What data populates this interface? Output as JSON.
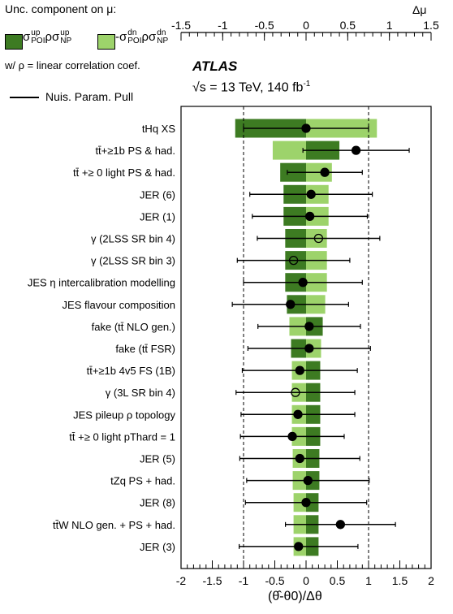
{
  "legend": {
    "title": "Unc. component on μ:",
    "up_color": "#3d7b22",
    "down_color": "#9dd36b",
    "corr_note": "w/ ρ = linear correlation coef.",
    "pull_label": "Nuis. Param. Pull"
  },
  "labels": {
    "atlas": "ATLAS",
    "energy_prefix": "√s = 13 TeV, 140 fb",
    "energy_exp": "-1",
    "x_title": "(θ̂-θ0)/Δθ",
    "top_title": "Δμ"
  },
  "chart_data": {
    "type": "ranking",
    "x_bottom": {
      "range": [
        -2,
        2
      ],
      "ticks": [
        -2,
        -1.5,
        -1,
        -0.5,
        0,
        0.5,
        1,
        1.5,
        2
      ]
    },
    "x_top": {
      "range": [
        -1.5,
        1.5
      ],
      "ticks": [
        -1.5,
        -1,
        -0.5,
        0,
        0.5,
        1,
        1.5
      ]
    },
    "dashed_lines": [
      -1,
      1
    ],
    "parameters": [
      {
        "name": "tHq XS",
        "impact_up": -0.85,
        "impact_dn": 0.85,
        "pull": 0.0,
        "err": 1.0,
        "open": false
      },
      {
        "name": "tt̄+≥1b PS & had.",
        "impact_up": 0.4,
        "impact_dn": -0.4,
        "pull": 0.8,
        "err": 0.85,
        "open": false
      },
      {
        "name": "tt̄ +≥ 0 light PS & had.",
        "impact_up": -0.31,
        "impact_dn": 0.31,
        "pull": 0.3,
        "err": 0.6,
        "open": false
      },
      {
        "name": "JER (6)",
        "impact_up": -0.27,
        "impact_dn": 0.27,
        "pull": 0.08,
        "err": 0.98,
        "open": false
      },
      {
        "name": "JER (1)",
        "impact_up": -0.27,
        "impact_dn": 0.27,
        "pull": 0.06,
        "err": 0.92,
        "open": false
      },
      {
        "name": "γ (2LSS SR bin 4)",
        "impact_up": -0.25,
        "impact_dn": 0.25,
        "pull": 0.2,
        "err": 0.98,
        "open": true
      },
      {
        "name": "γ (2LSS SR bin 3)",
        "impact_up": -0.25,
        "impact_dn": 0.25,
        "pull": -0.2,
        "err": 0.9,
        "open": true
      },
      {
        "name": "JES η intercalibration modelling",
        "impact_up": -0.25,
        "impact_dn": 0.25,
        "pull": -0.05,
        "err": 0.95,
        "open": false
      },
      {
        "name": "JES flavour composition",
        "impact_up": -0.23,
        "impact_dn": 0.23,
        "pull": -0.25,
        "err": 0.93,
        "open": false
      },
      {
        "name": "fake (tt̄ NLO gen.)",
        "impact_up": 0.2,
        "impact_dn": -0.2,
        "pull": 0.05,
        "err": 0.82,
        "open": false
      },
      {
        "name": "fake (tt̄ FSR)",
        "impact_up": -0.18,
        "impact_dn": 0.18,
        "pull": 0.05,
        "err": 0.98,
        "open": false
      },
      {
        "name": "tt̄+≥1b 4v5 FS (1B)",
        "impact_up": 0.17,
        "impact_dn": -0.17,
        "pull": -0.1,
        "err": 0.92,
        "open": false
      },
      {
        "name": "γ (3L SR bin 4)",
        "impact_up": 0.17,
        "impact_dn": -0.17,
        "pull": -0.17,
        "err": 0.95,
        "open": true
      },
      {
        "name": "JES pileup ρ topology",
        "impact_up": 0.17,
        "impact_dn": -0.17,
        "pull": -0.13,
        "err": 0.91,
        "open": false
      },
      {
        "name": "tt̄ +≥ 0 light pThard = 1",
        "impact_up": 0.17,
        "impact_dn": -0.17,
        "pull": -0.22,
        "err": 0.83,
        "open": false
      },
      {
        "name": "JER (5)",
        "impact_up": 0.16,
        "impact_dn": -0.16,
        "pull": -0.1,
        "err": 0.96,
        "open": false
      },
      {
        "name": "tZq PS + had.",
        "impact_up": 0.16,
        "impact_dn": -0.16,
        "pull": 0.03,
        "err": 0.98,
        "open": false
      },
      {
        "name": "JER (8)",
        "impact_up": 0.15,
        "impact_dn": -0.15,
        "pull": 0.0,
        "err": 0.97,
        "open": false
      },
      {
        "name": "tt̄W NLO gen. + PS + had.",
        "impact_up": 0.15,
        "impact_dn": -0.15,
        "pull": 0.55,
        "err": 0.88,
        "open": false
      },
      {
        "name": "JER (3)",
        "impact_up": 0.15,
        "impact_dn": -0.15,
        "pull": -0.12,
        "err": 0.95,
        "open": false
      }
    ]
  }
}
